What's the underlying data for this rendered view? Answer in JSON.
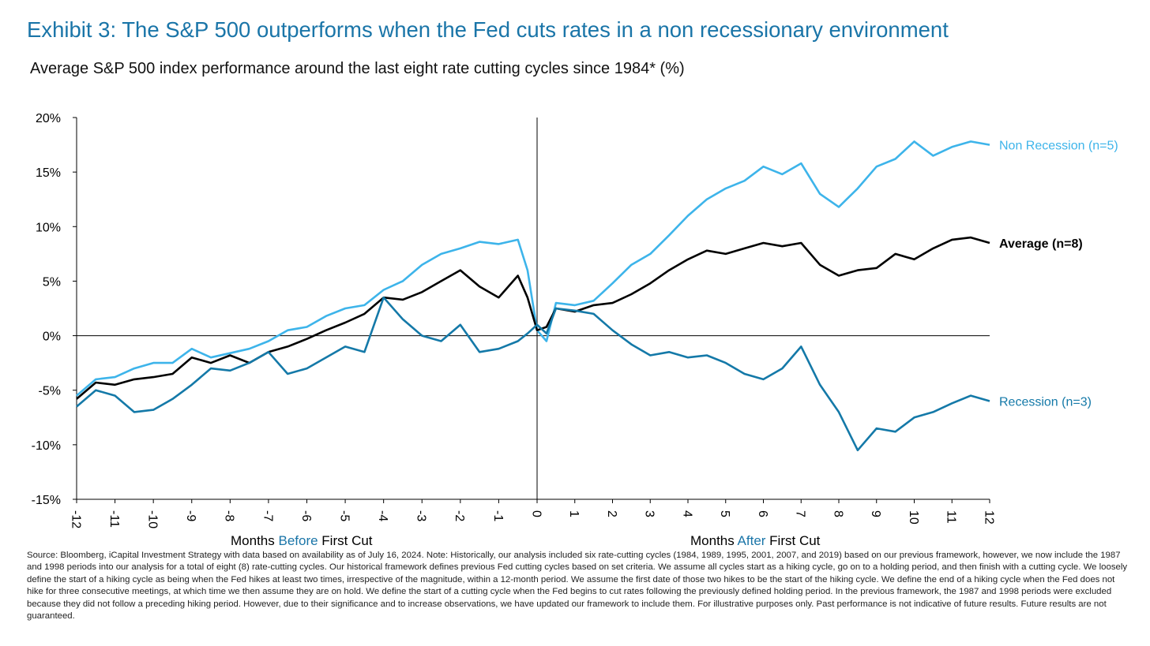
{
  "header": {
    "title": "Exhibit 3: The S&P 500 outperforms when the Fed cuts rates in a non recessionary environment",
    "subtitle": "Average S&P 500 index performance around the last eight rate cutting cycles since 1984* (%)"
  },
  "x_axis_labels": {
    "before": [
      "Months ",
      "Before",
      " First Cut"
    ],
    "after": [
      "Months ",
      "After",
      " First Cut"
    ]
  },
  "footnote": "Source: Bloomberg, iCapital Investment Strategy with data based on availability as of July 16, 2024. Note: Historically, our analysis included six rate-cutting cycles (1984, 1989, 1995, 2001, 2007, and 2019) based on our previous framework, however, we now include the 1987 and 1998 periods into our analysis for a total of eight (8) rate-cutting cycles. Our historical framework defines previous Fed cutting cycles based on set criteria. We assume all cycles start as a hiking cycle, go on to a holding period, and then finish with a cutting cycle. We loosely define the start of a hiking cycle as being when the Fed hikes at least two times, irrespective of the magnitude, within a 12-month period. We assume the first date of those two hikes to be the start of the hiking cycle. We define the end of a hiking cycle when the Fed does not hike for three consecutive meetings, at which time we then assume they are on hold. We define the start of a cutting cycle when the Fed begins to cut rates following the previously defined holding period. In the previous framework, the 1987 and 1998 periods were excluded because they did not follow a preceding hiking period. However, due to their significance and to increase observations, we have updated our framework to include them. For illustrative purposes only. Past performance is not indicative of future results. Future results are not guaranteed.",
  "chart_data": {
    "type": "line",
    "xlim": [
      -12,
      12
    ],
    "ylim": [
      -15,
      20
    ],
    "x_ticks": [
      -12,
      -11,
      -10,
      -9,
      -8,
      -7,
      -6,
      -5,
      -4,
      -3,
      -2,
      -1,
      0,
      1,
      2,
      3,
      4,
      5,
      6,
      7,
      8,
      9,
      10,
      11,
      12
    ],
    "x_tick_labels": [
      "-12",
      "-11",
      "-10",
      "-9",
      "-8",
      "-7",
      "-6",
      "-5",
      "-4",
      "-3",
      "-2",
      "-1",
      "0",
      "1",
      "2",
      "3",
      "4",
      "5",
      "6",
      "7",
      "8",
      "9",
      "10",
      "11",
      "12"
    ],
    "y_ticks": [
      -15,
      -10,
      -5,
      0,
      5,
      10,
      15,
      20
    ],
    "y_tick_labels": [
      "-15%",
      "-10%",
      "-5%",
      "0%",
      "5%",
      "10%",
      "15%",
      "20%"
    ],
    "grid": false,
    "series": [
      {
        "name": "Non Recession (n=5)",
        "color": "#3db4ea",
        "x": [
          -12,
          -11.5,
          -11,
          -10.5,
          -10,
          -9.5,
          -9,
          -8.5,
          -8,
          -7.5,
          -7,
          -6.5,
          -6,
          -5.5,
          -5,
          -4.5,
          -4,
          -3.5,
          -3,
          -2.5,
          -2,
          -1.5,
          -1,
          -0.5,
          -0.25,
          0,
          0.25,
          0.5,
          1,
          1.5,
          2,
          2.5,
          3,
          3.5,
          4,
          4.5,
          5,
          5.5,
          6,
          6.5,
          7,
          7.5,
          8,
          8.5,
          9,
          9.5,
          10,
          10.5,
          11,
          11.5,
          12
        ],
        "values": [
          -5.5,
          -4.0,
          -3.8,
          -3.0,
          -2.5,
          -2.5,
          -1.2,
          -2.0,
          -1.6,
          -1.2,
          -0.5,
          0.5,
          0.8,
          1.8,
          2.5,
          2.8,
          4.2,
          5.0,
          6.5,
          7.5,
          8.0,
          8.6,
          8.4,
          8.8,
          6.0,
          0.5,
          -0.5,
          3.0,
          2.8,
          3.2,
          4.8,
          6.5,
          7.5,
          9.2,
          11.0,
          12.5,
          13.5,
          14.2,
          15.5,
          14.8,
          15.8,
          13.0,
          11.8,
          13.5,
          15.5,
          16.2,
          17.8,
          16.5,
          17.3,
          17.8,
          17.5
        ]
      },
      {
        "name": "Average (n=8)",
        "color": "#000000",
        "x": [
          -12,
          -11.5,
          -11,
          -10.5,
          -10,
          -9.5,
          -9,
          -8.5,
          -8,
          -7.5,
          -7,
          -6.5,
          -6,
          -5.5,
          -5,
          -4.5,
          -4,
          -3.5,
          -3,
          -2.5,
          -2,
          -1.5,
          -1,
          -0.5,
          -0.25,
          0,
          0.25,
          0.5,
          1,
          1.5,
          2,
          2.5,
          3,
          3.5,
          4,
          4.5,
          5,
          5.5,
          6,
          6.5,
          7,
          7.5,
          8,
          8.5,
          9,
          9.5,
          10,
          10.5,
          11,
          11.5,
          12
        ],
        "values": [
          -5.8,
          -4.3,
          -4.5,
          -4.0,
          -3.8,
          -3.5,
          -2.0,
          -2.5,
          -1.8,
          -2.5,
          -1.5,
          -1.0,
          -0.3,
          0.5,
          1.2,
          2.0,
          3.5,
          3.3,
          4.0,
          5.0,
          6.0,
          4.5,
          3.5,
          5.5,
          3.5,
          0.5,
          0.8,
          2.5,
          2.2,
          2.8,
          3.0,
          3.8,
          4.8,
          6.0,
          7.0,
          7.8,
          7.5,
          8.0,
          8.5,
          8.2,
          8.5,
          6.5,
          5.5,
          6.0,
          6.2,
          7.5,
          7.0,
          8.0,
          8.8,
          9.0,
          8.5
        ]
      },
      {
        "name": "Recession (n=3)",
        "color": "#1479a8",
        "x": [
          -12,
          -11.5,
          -11,
          -10.5,
          -10,
          -9.5,
          -9,
          -8.5,
          -8,
          -7.5,
          -7,
          -6.5,
          -6,
          -5.5,
          -5,
          -4.5,
          -4,
          -3.5,
          -3,
          -2.5,
          -2,
          -1.5,
          -1,
          -0.5,
          -0.25,
          0,
          0.25,
          0.5,
          1,
          1.5,
          2,
          2.5,
          3,
          3.5,
          4,
          4.5,
          5,
          5.5,
          6,
          6.5,
          7,
          7.5,
          8,
          8.5,
          9,
          9.5,
          10,
          10.5,
          11,
          11.5,
          12
        ],
        "values": [
          -6.5,
          -5.0,
          -5.5,
          -7.0,
          -6.8,
          -5.8,
          -4.5,
          -3.0,
          -3.2,
          -2.5,
          -1.5,
          -3.5,
          -3.0,
          -2.0,
          -1.0,
          -1.5,
          3.5,
          1.5,
          0.0,
          -0.5,
          1.0,
          -1.5,
          -1.2,
          -0.5,
          0.2,
          1.0,
          0.2,
          2.5,
          2.3,
          2.0,
          0.5,
          -0.8,
          -1.8,
          -1.5,
          -2.0,
          -1.8,
          -2.5,
          -3.5,
          -4.0,
          -3.0,
          -1.0,
          -4.5,
          -7.0,
          -10.5,
          -8.5,
          -8.8,
          -7.5,
          -7.0,
          -6.2,
          -5.5,
          -6.0
        ]
      }
    ]
  }
}
